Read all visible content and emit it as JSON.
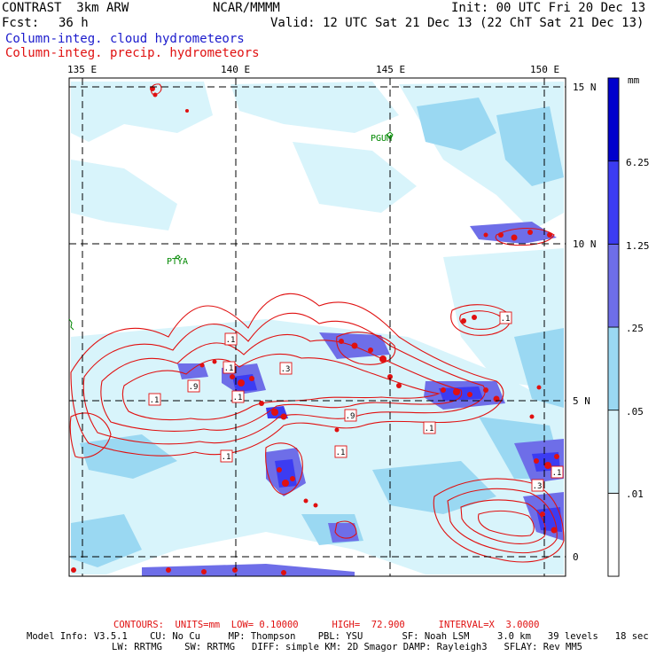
{
  "header": {
    "model": "CONTRAST  3km ARW",
    "org": "NCAR/MMMM",
    "init": "Init: 00 UTC Fri 20 Dec 13",
    "fcst_label": "Fcst:",
    "fcst_value": "36 h",
    "valid": "Valid: 12 UTC Sat 21 Dec 13 (22 ChT Sat 21 Dec 13)",
    "field1": "Column-integ. cloud hydrometeors",
    "field2": "Column-integ. precip. hydrometeors"
  },
  "map": {
    "lon_labels": [
      "135 E",
      "140 E",
      "145 E",
      "150 E"
    ],
    "lat_labels": [
      "15 N",
      "10 N",
      "5 N",
      "0"
    ],
    "places": [
      "PGUM",
      "PTYA"
    ],
    "contour_labels": [
      ".1",
      ".1",
      ".3",
      ".1",
      ".9",
      ".1",
      ".9",
      ".1",
      ".1",
      ".1",
      ".1",
      ".3",
      ".1"
    ]
  },
  "colorbar": {
    "unit": "mm",
    "ticks": [
      "6.25",
      "1.25",
      ".25",
      ".05",
      ".01"
    ],
    "colors": [
      "#ffffff",
      "#d8f4fb",
      "#9ad8f2",
      "#6e6ee8",
      "#3c3cf2",
      "#0000cc"
    ]
  },
  "footer": {
    "contours": "CONTOURS:  UNITS=mm  LOW= 0.10000      HIGH=  72.900      INTERVAL=X  3.0000",
    "model_info": "Model Info: V3.5.1    CU: No Cu     MP: Thompson    PBL: YSU       SF: Noah LSM     3.0 km   39 levels   18 sec",
    "model_info2": "LW: RRTMG    SW: RRTMG   DIFF: simple KM: 2D Smagor DAMP: Rayleigh3   SFLAY: Rev MM5"
  }
}
